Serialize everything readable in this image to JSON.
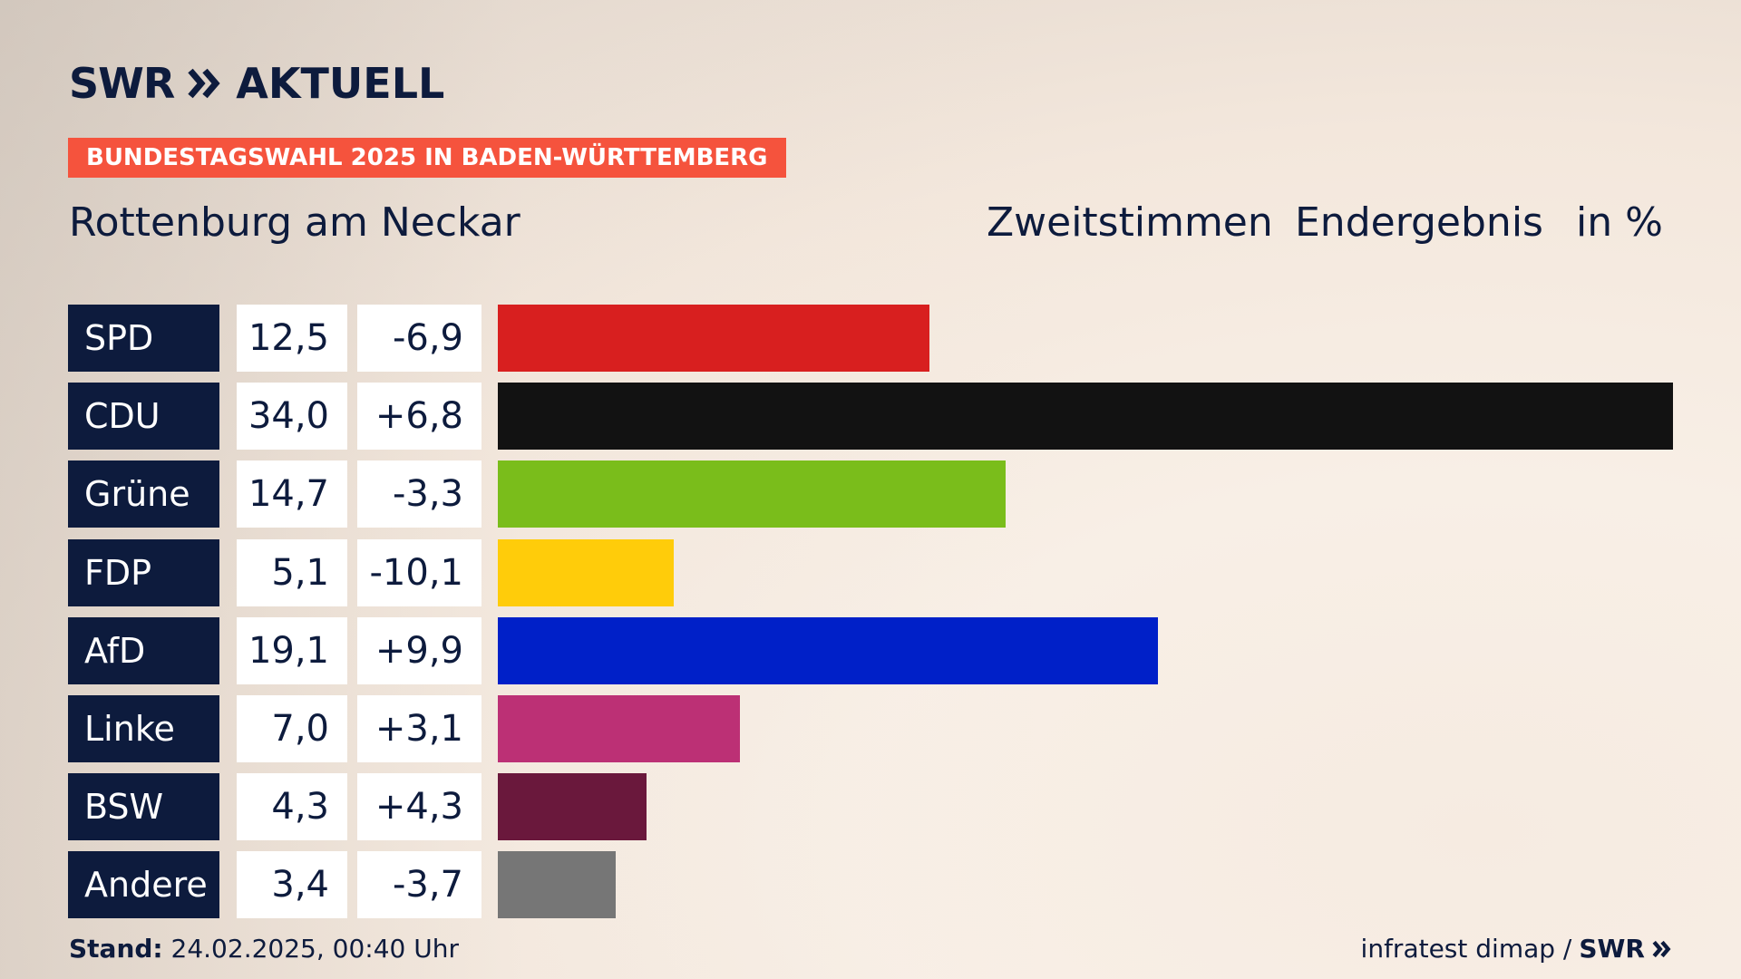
{
  "brand": {
    "logo_swr": "SWR",
    "logo_aktuell": "AKTUELL",
    "footer_swr": "SWR"
  },
  "banner": "BUNDESTAGSWAHL 2025 IN BADEN-WÜRTTEMBERG",
  "region": "Rottenburg am Neckar",
  "headers": {
    "vote_type": "Zweitstimmen",
    "status": "Endergebnis",
    "unit": "in %"
  },
  "footer": {
    "stand_label": "Stand:",
    "stand_value": "24.02.2025, 00:40 Uhr",
    "source": "infratest dimap /"
  },
  "chart_data": {
    "type": "bar",
    "orientation": "horizontal",
    "categories": [
      "SPD",
      "CDU",
      "Grüne",
      "FDP",
      "AfD",
      "Linke",
      "BSW",
      "Andere"
    ],
    "values": [
      12.5,
      34.0,
      14.7,
      5.1,
      19.1,
      7.0,
      4.3,
      3.4
    ],
    "value_labels": [
      "12,5",
      "34,0",
      "14,7",
      "5,1",
      "19,1",
      "7,0",
      "4,3",
      "3,4"
    ],
    "diff_labels": [
      "-6,9",
      "+6,8",
      "-3,3",
      "-10,1",
      "+9,9",
      "+3,1",
      "+4,3",
      "-3,7"
    ],
    "diffs": [
      -6.9,
      6.8,
      -3.3,
      -10.1,
      9.9,
      3.1,
      4.3,
      -3.7
    ],
    "colors": [
      "#d81f1f",
      "#121212",
      "#7abd1b",
      "#ffcc0a",
      "#0020c8",
      "#bc3075",
      "#6a183c",
      "#767676"
    ],
    "xlim": [
      0,
      34.0
    ],
    "unit": "%"
  }
}
